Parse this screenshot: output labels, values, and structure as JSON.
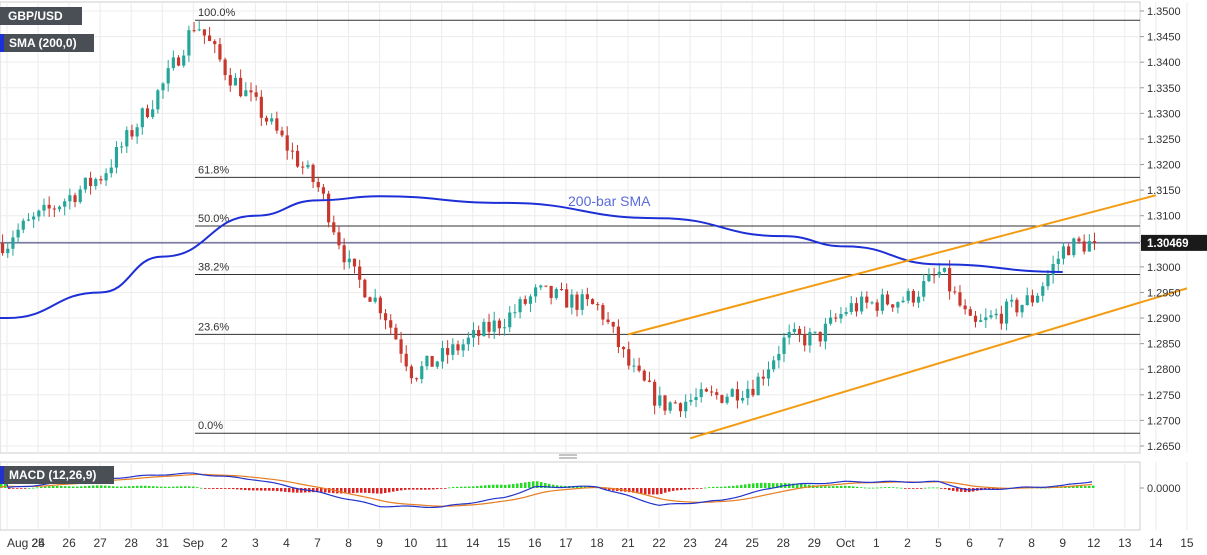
{
  "symbol_label": "GBP/USD",
  "sma_label": "SMA (200,0)",
  "macd_label": "MACD (12,26,9)",
  "price_tag": "1.30469",
  "sma_annotation": "200-bar SMA",
  "colors": {
    "up": "#26a69a",
    "down": "#c8372d",
    "sma": "#1d2fd6",
    "sma_text": "#5b6bd8",
    "channel": "#f39c12",
    "fib": "#333333",
    "macd_line": "#2233cc",
    "signal_line": "#e67e22",
    "hist_pos": "#22dd22",
    "hist_neg": "#dd2222",
    "tag_bg": "#1a1a1a"
  },
  "chart_data": {
    "type": "candlestick",
    "price_axis": {
      "min": 1.265,
      "max": 1.35,
      "ticks": [
        "1.3500",
        "1.3450",
        "1.3400",
        "1.3350",
        "1.3300",
        "1.3250",
        "1.3200",
        "1.3150",
        "1.3100",
        "1.3050",
        "1.3000",
        "1.2950",
        "1.2900",
        "1.2850",
        "1.2800",
        "1.2750",
        "1.2700",
        "1.2650"
      ]
    },
    "x_axis_labels": [
      "Aug 24",
      "25",
      "26",
      "27",
      "28",
      "31",
      "Sep",
      "2",
      "3",
      "4",
      "7",
      "8",
      "9",
      "10",
      "11",
      "14",
      "15",
      "16",
      "17",
      "18",
      "21",
      "22",
      "23",
      "24",
      "25",
      "28",
      "29",
      "Oct",
      "1",
      "2",
      "5",
      "6",
      "7",
      "8",
      "9",
      "12",
      "13",
      "14",
      "15"
    ],
    "last_price": 1.30469,
    "price_path": [
      {
        "label": "Aug 24",
        "price": 1.306
      },
      {
        "label": "27",
        "price": 1.318
      },
      {
        "label": "31",
        "price": 1.336
      },
      {
        "label": "Sep",
        "price": 1.348
      },
      {
        "label": "2",
        "price": 1.338
      },
      {
        "label": "3",
        "price": 1.331
      },
      {
        "label": "7",
        "price": 1.315
      },
      {
        "label": "8",
        "price": 1.299
      },
      {
        "label": "9",
        "price": 1.292
      },
      {
        "label": "10",
        "price": 1.279
      },
      {
        "label": "15",
        "price": 1.29
      },
      {
        "label": "16",
        "price": 1.295
      },
      {
        "label": "18",
        "price": 1.292
      },
      {
        "label": "21",
        "price": 1.28
      },
      {
        "label": "22",
        "price": 1.273
      },
      {
        "label": "24",
        "price": 1.275
      },
      {
        "label": "25",
        "price": 1.277
      },
      {
        "label": "28",
        "price": 1.286
      },
      {
        "label": "29",
        "price": 1.286
      },
      {
        "label": "Oct",
        "price": 1.292
      },
      {
        "label": "2",
        "price": 1.294
      },
      {
        "label": "5",
        "price": 1.299
      },
      {
        "label": "6",
        "price": 1.288
      },
      {
        "label": "8",
        "price": 1.294
      },
      {
        "label": "9",
        "price": 1.304
      },
      {
        "label": "12",
        "price": 1.3047
      }
    ],
    "sma_200": [
      {
        "label": "Aug 24",
        "value": 1.29
      },
      {
        "label": "27",
        "value": 1.295
      },
      {
        "label": "31",
        "value": 1.302
      },
      {
        "label": "3",
        "value": 1.31
      },
      {
        "label": "7",
        "value": 1.313
      },
      {
        "label": "9",
        "value": 1.3138
      },
      {
        "label": "15",
        "value": 1.3125
      },
      {
        "label": "22",
        "value": 1.3095
      },
      {
        "label": "28",
        "value": 1.306
      },
      {
        "label": "Oct",
        "value": 1.304
      },
      {
        "label": "5",
        "value": 1.3005
      },
      {
        "label": "9",
        "value": 1.299
      }
    ],
    "fibonacci": [
      {
        "level": "100.0%",
        "price": 1.3482
      },
      {
        "level": "61.8%",
        "price": 1.3175
      },
      {
        "level": "50.0%",
        "price": 1.308
      },
      {
        "level": "38.2%",
        "price": 1.2985
      },
      {
        "level": "23.6%",
        "price": 1.2868
      },
      {
        "level": "0.0%",
        "price": 1.2675
      }
    ],
    "channel": {
      "upper": [
        {
          "label": "21",
          "price": 1.2868
        },
        {
          "label": "14",
          "price": 1.314
        }
      ],
      "lower": [
        {
          "label": "23",
          "price": 1.2665
        },
        {
          "label": "15",
          "price": 1.2958
        }
      ]
    },
    "macd": {
      "label": "MACD (12,26,9)",
      "ticks": [
        "0.0000"
      ],
      "macd_line": [
        {
          "label": "Aug 24",
          "value": 0.0
        },
        {
          "label": "27",
          "value": 0.0032
        },
        {
          "label": "31",
          "value": 0.0048
        },
        {
          "label": "Sep",
          "value": 0.0052
        },
        {
          "label": "3",
          "value": 0.003
        },
        {
          "label": "7",
          "value": -0.0015
        },
        {
          "label": "9",
          "value": -0.0065
        },
        {
          "label": "11",
          "value": -0.0068
        },
        {
          "label": "15",
          "value": -0.0035
        },
        {
          "label": "16",
          "value": 0.0003
        },
        {
          "label": "18",
          "value": 0.0005
        },
        {
          "label": "22",
          "value": -0.0062
        },
        {
          "label": "24",
          "value": -0.0045
        },
        {
          "label": "28",
          "value": 0.001
        },
        {
          "label": "Oct",
          "value": 0.0022
        },
        {
          "label": "5",
          "value": 0.0022
        },
        {
          "label": "6",
          "value": -0.0008
        },
        {
          "label": "9",
          "value": 0.0008
        },
        {
          "label": "12",
          "value": 0.0025
        }
      ]
    }
  }
}
